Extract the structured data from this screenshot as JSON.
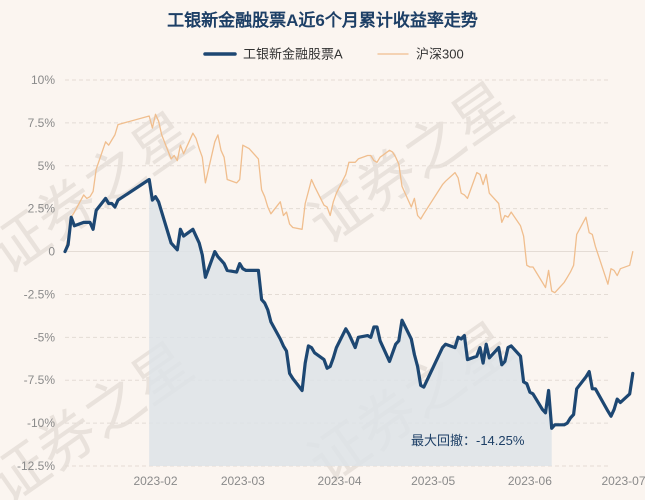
{
  "chart_data": {
    "type": "line",
    "title": "工银新金融股票A近6个月累计收益率走势",
    "xlabel": "",
    "ylabel": "",
    "x_ticks": [
      "2023-02",
      "2023-03",
      "2023-04",
      "2023-05",
      "2023-06",
      "2023-07"
    ],
    "y_ticks": [
      "10%",
      "7.5%",
      "5%",
      "2.5%",
      "0",
      "-2.5%",
      "-5%",
      "-7.5%",
      "-10%",
      "-12.5%"
    ],
    "ylim": [
      -12.5,
      10
    ],
    "grid": true,
    "legend_position": "top-center",
    "watermark": "证券之星",
    "annotation": "最大回撤：-14.25%",
    "drawdown_region": {
      "start": "2023-01-30",
      "end": "2023-06-08"
    },
    "series": [
      {
        "name": "工银新金融股票A",
        "color": "#1d4772",
        "points": [
          [
            "2023-01-03",
            0.0
          ],
          [
            "2023-01-04",
            0.4
          ],
          [
            "2023-01-05",
            2.0
          ],
          [
            "2023-01-06",
            1.5
          ],
          [
            "2023-01-09",
            1.7
          ],
          [
            "2023-01-10",
            1.7
          ],
          [
            "2023-01-11",
            1.7
          ],
          [
            "2023-01-12",
            1.3
          ],
          [
            "2023-01-13",
            2.4
          ],
          [
            "2023-01-16",
            3.1
          ],
          [
            "2023-01-17",
            2.8
          ],
          [
            "2023-01-18",
            2.8
          ],
          [
            "2023-01-19",
            2.6
          ],
          [
            "2023-01-20",
            3.0
          ],
          [
            "2023-01-30",
            4.2
          ],
          [
            "2023-01-31",
            3.0
          ],
          [
            "2023-02-01",
            3.2
          ],
          [
            "2023-02-02",
            2.9
          ],
          [
            "2023-02-03",
            2.3
          ],
          [
            "2023-02-06",
            0.5
          ],
          [
            "2023-02-07",
            0.3
          ],
          [
            "2023-02-08",
            0.1
          ],
          [
            "2023-02-09",
            1.3
          ],
          [
            "2023-02-10",
            0.9
          ],
          [
            "2023-02-13",
            1.3
          ],
          [
            "2023-02-14",
            0.9
          ],
          [
            "2023-02-15",
            0.5
          ],
          [
            "2023-02-16",
            -0.2
          ],
          [
            "2023-02-17",
            -1.5
          ],
          [
            "2023-02-20",
            0.0
          ],
          [
            "2023-02-21",
            -0.3
          ],
          [
            "2023-02-22",
            -0.5
          ],
          [
            "2023-02-23",
            -0.7
          ],
          [
            "2023-02-24",
            -1.1
          ],
          [
            "2023-02-27",
            -1.2
          ],
          [
            "2023-02-28",
            -0.7
          ],
          [
            "2023-03-01",
            -1.0
          ],
          [
            "2023-03-02",
            -1.1
          ],
          [
            "2023-03-03",
            -1.1
          ],
          [
            "2023-03-06",
            -1.1
          ],
          [
            "2023-03-07",
            -2.8
          ],
          [
            "2023-03-08",
            -3.0
          ],
          [
            "2023-03-09",
            -3.4
          ],
          [
            "2023-03-10",
            -4.1
          ],
          [
            "2023-03-13",
            -5.1
          ],
          [
            "2023-03-14",
            -5.5
          ],
          [
            "2023-03-15",
            -5.8
          ],
          [
            "2023-03-16",
            -7.1
          ],
          [
            "2023-03-17",
            -7.4
          ],
          [
            "2023-03-20",
            -8.1
          ],
          [
            "2023-03-21",
            -6.5
          ],
          [
            "2023-03-22",
            -5.5
          ],
          [
            "2023-03-23",
            -5.6
          ],
          [
            "2023-03-24",
            -5.9
          ],
          [
            "2023-03-27",
            -6.3
          ],
          [
            "2023-03-28",
            -6.8
          ],
          [
            "2023-03-29",
            -6.7
          ],
          [
            "2023-03-30",
            -6.2
          ],
          [
            "2023-03-31",
            -5.6
          ],
          [
            "2023-04-03",
            -4.5
          ],
          [
            "2023-04-04",
            -4.8
          ],
          [
            "2023-04-06",
            -5.6
          ],
          [
            "2023-04-07",
            -5.0
          ],
          [
            "2023-04-10",
            -4.9
          ],
          [
            "2023-04-11",
            -5.0
          ],
          [
            "2023-04-12",
            -4.4
          ],
          [
            "2023-04-13",
            -4.4
          ],
          [
            "2023-04-14",
            -5.2
          ],
          [
            "2023-04-17",
            -6.4
          ],
          [
            "2023-04-18",
            -5.9
          ],
          [
            "2023-04-19",
            -5.4
          ],
          [
            "2023-04-20",
            -5.2
          ],
          [
            "2023-04-21",
            -4.0
          ],
          [
            "2023-04-24",
            -5.1
          ],
          [
            "2023-04-25",
            -6.0
          ],
          [
            "2023-04-26",
            -6.7
          ],
          [
            "2023-04-27",
            -7.8
          ],
          [
            "2023-04-28",
            -7.9
          ],
          [
            "2023-05-04",
            -5.6
          ],
          [
            "2023-05-05",
            -5.4
          ],
          [
            "2023-05-08",
            -5.6
          ],
          [
            "2023-05-09",
            -5.0
          ],
          [
            "2023-05-10",
            -5.1
          ],
          [
            "2023-05-11",
            -4.9
          ],
          [
            "2023-05-12",
            -6.3
          ],
          [
            "2023-05-15",
            -6.1
          ],
          [
            "2023-05-16",
            -5.6
          ],
          [
            "2023-05-17",
            -6.5
          ],
          [
            "2023-05-18",
            -5.4
          ],
          [
            "2023-05-19",
            -6.2
          ],
          [
            "2023-05-22",
            -5.6
          ],
          [
            "2023-05-23",
            -6.6
          ],
          [
            "2023-05-24",
            -6.4
          ],
          [
            "2023-05-25",
            -5.6
          ],
          [
            "2023-05-26",
            -5.5
          ],
          [
            "2023-05-29",
            -6.1
          ],
          [
            "2023-05-30",
            -7.6
          ],
          [
            "2023-05-31",
            -7.7
          ],
          [
            "2023-06-01",
            -8.2
          ],
          [
            "2023-06-02",
            -8.3
          ],
          [
            "2023-06-05",
            -9.2
          ],
          [
            "2023-06-06",
            -9.4
          ],
          [
            "2023-06-07",
            -8.1
          ],
          [
            "2023-06-08",
            -10.3
          ],
          [
            "2023-06-09",
            -10.1
          ],
          [
            "2023-06-12",
            -10.1
          ],
          [
            "2023-06-13",
            -10.0
          ],
          [
            "2023-06-14",
            -9.7
          ],
          [
            "2023-06-15",
            -9.5
          ],
          [
            "2023-06-16",
            -8.0
          ],
          [
            "2023-06-19",
            -7.3
          ],
          [
            "2023-06-20",
            -7.0
          ],
          [
            "2023-06-21",
            -8.0
          ],
          [
            "2023-06-22",
            -8.0
          ],
          [
            "2023-06-26",
            -9.3
          ],
          [
            "2023-06-27",
            -9.6
          ],
          [
            "2023-06-28",
            -9.2
          ],
          [
            "2023-06-29",
            -8.6
          ],
          [
            "2023-06-30",
            -8.8
          ],
          [
            "2023-07-03",
            -8.3
          ],
          [
            "2023-07-04",
            -7.1
          ]
        ]
      },
      {
        "name": "沪深300",
        "color": "#f0be8e",
        "points": [
          [
            "2023-01-03",
            0.0
          ],
          [
            "2023-01-04",
            0.8
          ],
          [
            "2023-01-05",
            2.0
          ],
          [
            "2023-01-06",
            2.3
          ],
          [
            "2023-01-09",
            3.3
          ],
          [
            "2023-01-10",
            3.1
          ],
          [
            "2023-01-11",
            3.2
          ],
          [
            "2023-01-12",
            3.5
          ],
          [
            "2023-01-13",
            4.8
          ],
          [
            "2023-01-16",
            6.4
          ],
          [
            "2023-01-17",
            6.2
          ],
          [
            "2023-01-18",
            6.5
          ],
          [
            "2023-01-19",
            6.8
          ],
          [
            "2023-01-20",
            7.4
          ],
          [
            "2023-01-30",
            7.9
          ],
          [
            "2023-01-31",
            7.2
          ],
          [
            "2023-02-01",
            8.0
          ],
          [
            "2023-02-02",
            7.6
          ],
          [
            "2023-02-03",
            6.8
          ],
          [
            "2023-02-06",
            5.4
          ],
          [
            "2023-02-07",
            5.6
          ],
          [
            "2023-02-08",
            5.3
          ],
          [
            "2023-02-09",
            6.2
          ],
          [
            "2023-02-10",
            5.7
          ],
          [
            "2023-02-13",
            6.9
          ],
          [
            "2023-02-14",
            6.6
          ],
          [
            "2023-02-15",
            6.0
          ],
          [
            "2023-02-16",
            5.5
          ],
          [
            "2023-02-17",
            4.0
          ],
          [
            "2023-02-20",
            6.4
          ],
          [
            "2023-02-21",
            6.8
          ],
          [
            "2023-02-22",
            5.9
          ],
          [
            "2023-02-23",
            5.5
          ],
          [
            "2023-02-24",
            4.2
          ],
          [
            "2023-02-27",
            4.0
          ],
          [
            "2023-02-28",
            4.2
          ],
          [
            "2023-03-01",
            6.2
          ],
          [
            "2023-03-02",
            6.1
          ],
          [
            "2023-03-03",
            6.0
          ],
          [
            "2023-03-06",
            5.4
          ],
          [
            "2023-03-07",
            3.6
          ],
          [
            "2023-03-08",
            3.2
          ],
          [
            "2023-03-09",
            2.6
          ],
          [
            "2023-03-10",
            2.2
          ],
          [
            "2023-03-13",
            2.9
          ],
          [
            "2023-03-14",
            2.1
          ],
          [
            "2023-03-15",
            2.3
          ],
          [
            "2023-03-16",
            1.6
          ],
          [
            "2023-03-17",
            1.4
          ],
          [
            "2023-03-20",
            1.3
          ],
          [
            "2023-03-21",
            2.8
          ],
          [
            "2023-03-22",
            3.5
          ],
          [
            "2023-03-23",
            4.2
          ],
          [
            "2023-03-24",
            3.8
          ],
          [
            "2023-03-27",
            2.7
          ],
          [
            "2023-03-28",
            2.6
          ],
          [
            "2023-03-29",
            2.1
          ],
          [
            "2023-03-30",
            2.9
          ],
          [
            "2023-03-31",
            3.4
          ],
          [
            "2023-04-03",
            4.5
          ],
          [
            "2023-04-04",
            5.2
          ],
          [
            "2023-04-06",
            5.2
          ],
          [
            "2023-04-07",
            5.4
          ],
          [
            "2023-04-10",
            5.6
          ],
          [
            "2023-04-11",
            5.6
          ],
          [
            "2023-04-12",
            5.3
          ],
          [
            "2023-04-13",
            5.2
          ],
          [
            "2023-04-14",
            5.5
          ],
          [
            "2023-04-17",
            5.9
          ],
          [
            "2023-04-18",
            5.8
          ],
          [
            "2023-04-19",
            5.5
          ],
          [
            "2023-04-20",
            5.1
          ],
          [
            "2023-04-21",
            3.8
          ],
          [
            "2023-04-24",
            2.6
          ],
          [
            "2023-04-25",
            3.1
          ],
          [
            "2023-04-26",
            2.1
          ],
          [
            "2023-04-27",
            1.9
          ],
          [
            "2023-04-28",
            2.2
          ],
          [
            "2023-05-04",
            3.9
          ],
          [
            "2023-05-05",
            4.1
          ],
          [
            "2023-05-08",
            4.6
          ],
          [
            "2023-05-09",
            4.3
          ],
          [
            "2023-05-10",
            3.4
          ],
          [
            "2023-05-11",
            3.3
          ],
          [
            "2023-05-12",
            3.1
          ],
          [
            "2023-05-15",
            4.6
          ],
          [
            "2023-05-16",
            4.5
          ],
          [
            "2023-05-17",
            3.9
          ],
          [
            "2023-05-18",
            4.5
          ],
          [
            "2023-05-19",
            3.4
          ],
          [
            "2023-05-22",
            2.8
          ],
          [
            "2023-05-23",
            1.7
          ],
          [
            "2023-05-24",
            2.1
          ],
          [
            "2023-05-25",
            2.0
          ],
          [
            "2023-05-26",
            2.3
          ],
          [
            "2023-05-29",
            1.5
          ],
          [
            "2023-05-30",
            0.9
          ],
          [
            "2023-05-31",
            -0.8
          ],
          [
            "2023-06-01",
            -0.9
          ],
          [
            "2023-06-02",
            -0.9
          ],
          [
            "2023-06-05",
            -1.8
          ],
          [
            "2023-06-06",
            -2.1
          ],
          [
            "2023-06-07",
            -1.1
          ],
          [
            "2023-06-08",
            -2.3
          ],
          [
            "2023-06-09",
            -2.4
          ],
          [
            "2023-06-12",
            -1.8
          ],
          [
            "2023-06-13",
            -1.5
          ],
          [
            "2023-06-14",
            -1.2
          ],
          [
            "2023-06-15",
            -0.8
          ],
          [
            "2023-06-16",
            1.0
          ],
          [
            "2023-06-19",
            2.0
          ],
          [
            "2023-06-20",
            1.1
          ],
          [
            "2023-06-21",
            1.0
          ],
          [
            "2023-06-22",
            0.3
          ],
          [
            "2023-06-26",
            -1.9
          ],
          [
            "2023-06-27",
            -1.0
          ],
          [
            "2023-06-28",
            -1.1
          ],
          [
            "2023-06-29",
            -1.4
          ],
          [
            "2023-06-30",
            -1.0
          ],
          [
            "2023-07-03",
            -0.8
          ],
          [
            "2023-07-04",
            0.0
          ]
        ]
      }
    ]
  }
}
